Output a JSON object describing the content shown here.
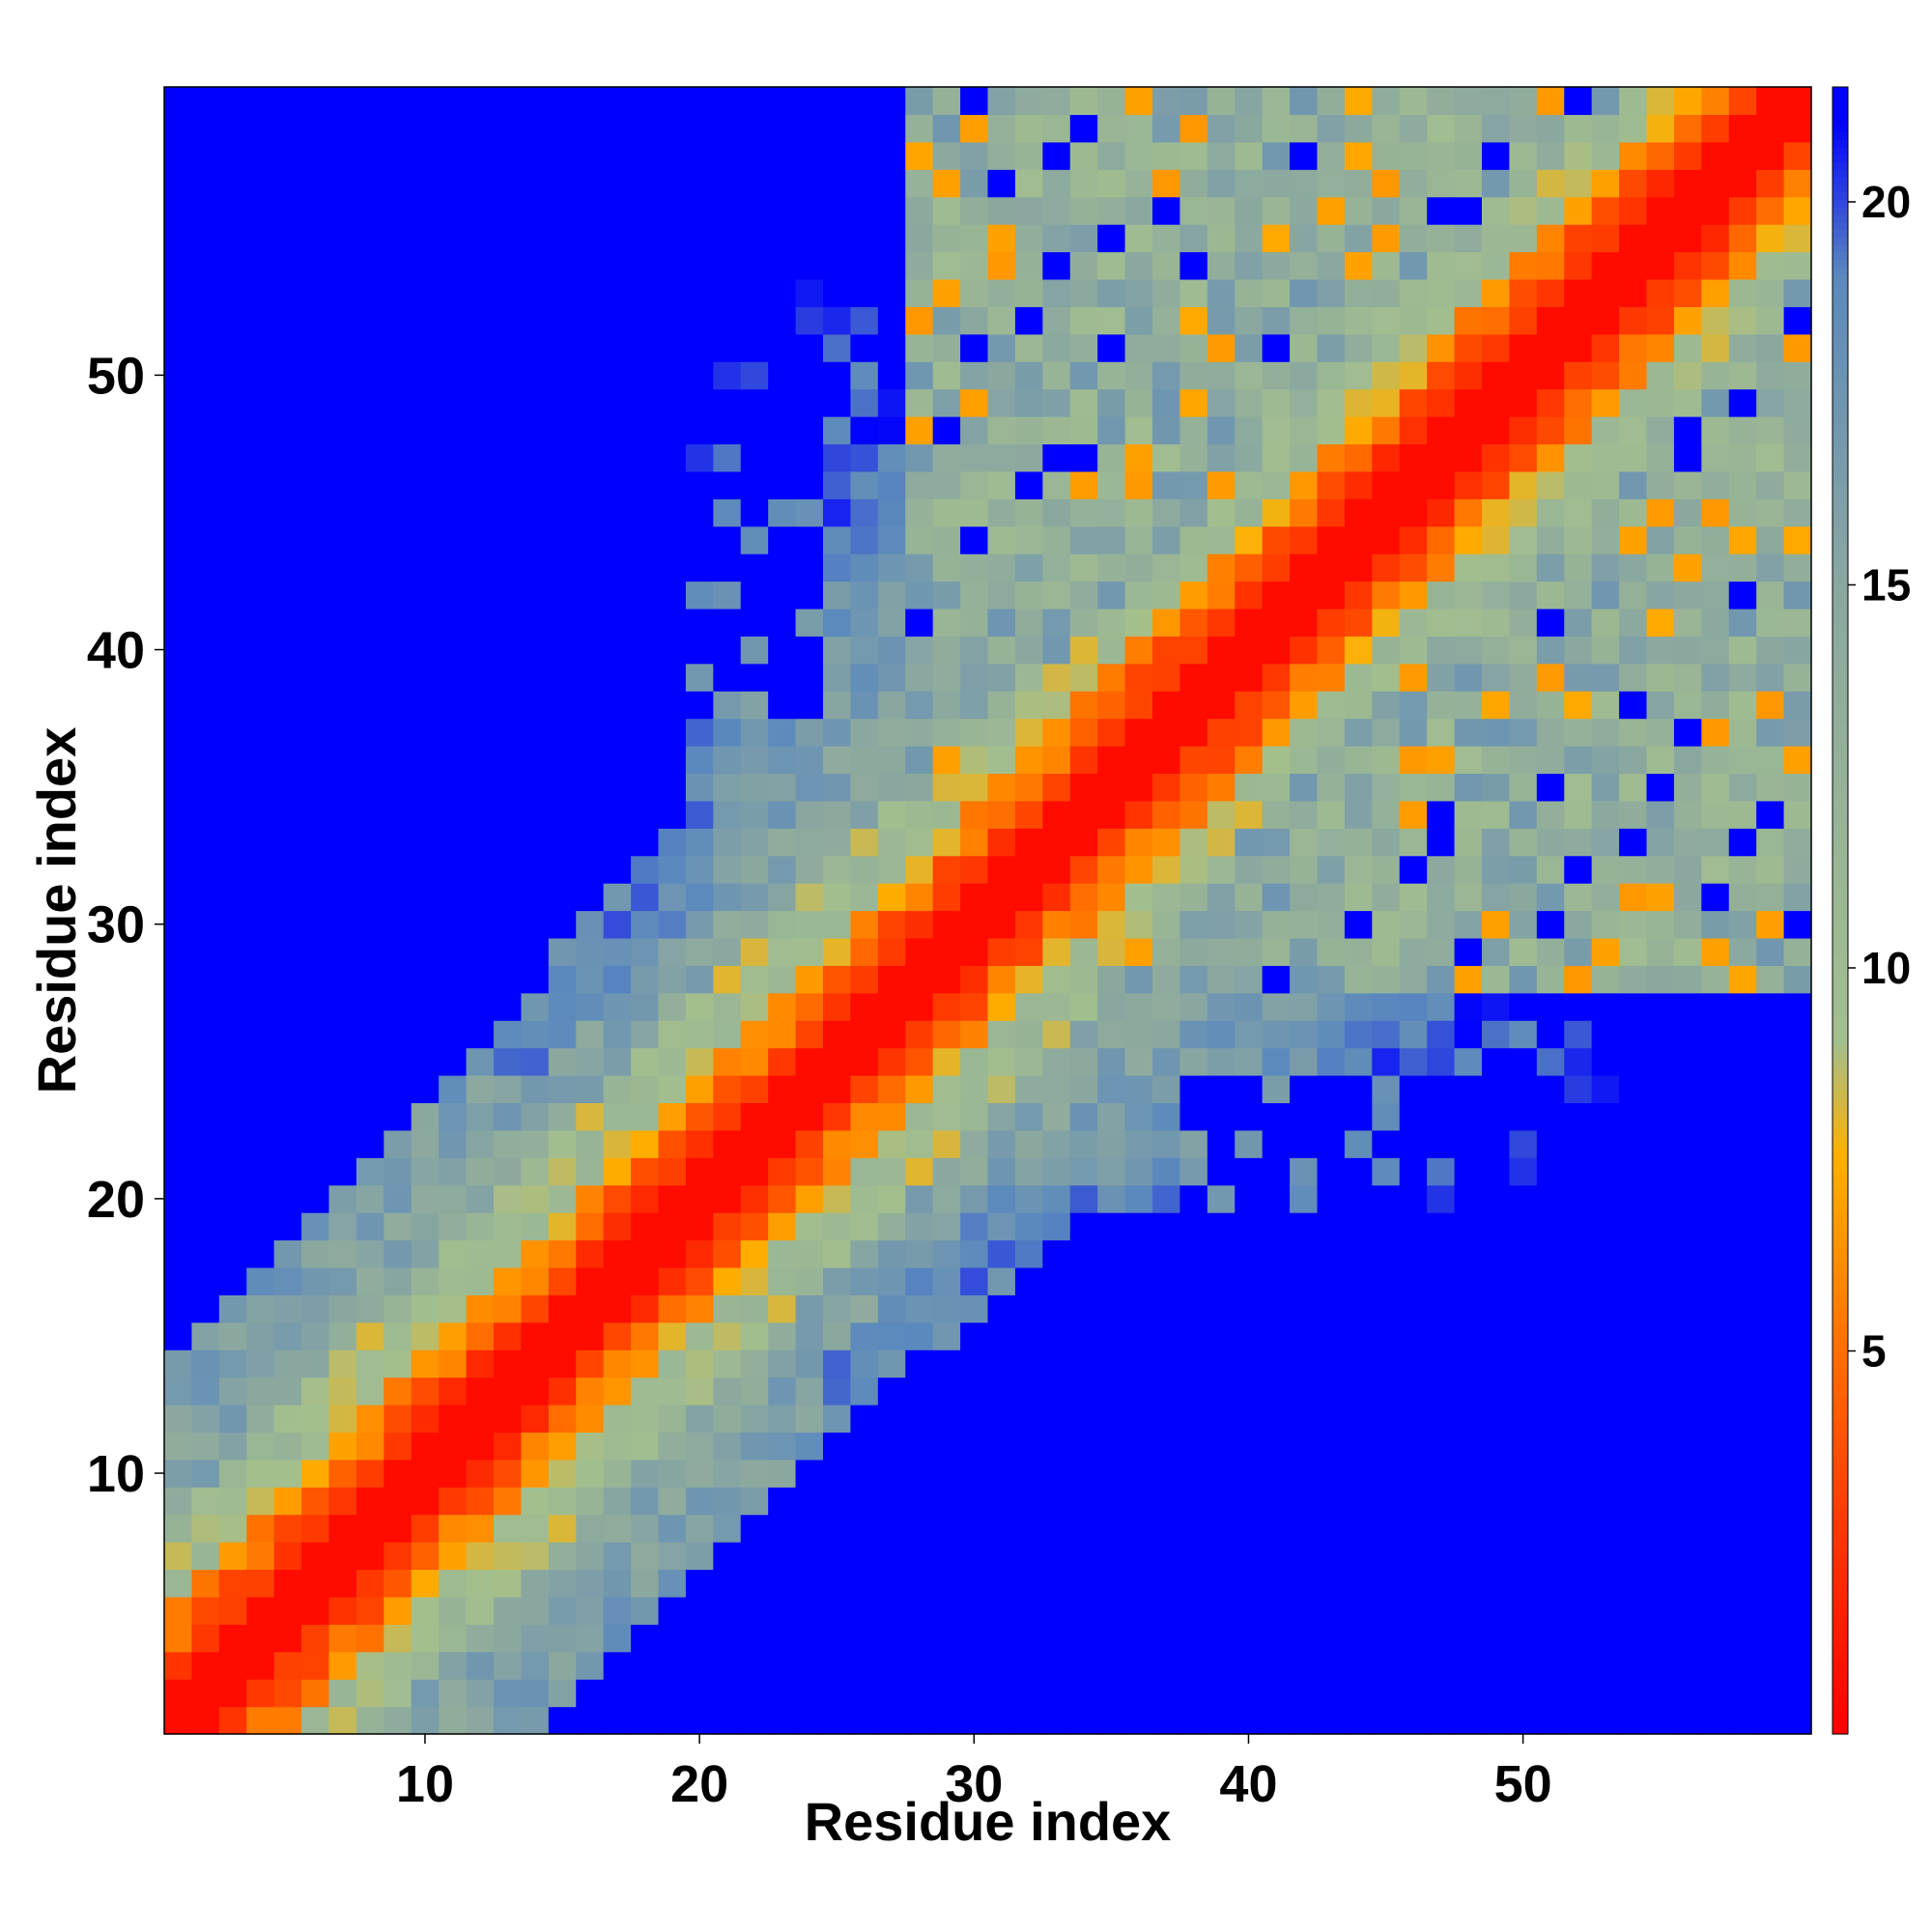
{
  "chart_data": {
    "type": "heatmap",
    "title": "",
    "xlabel": "Residue index",
    "ylabel": "Residue index",
    "x_range": [
      1,
      60
    ],
    "y_range": [
      1,
      60
    ],
    "x_ticks": [
      10,
      20,
      30,
      40,
      50
    ],
    "y_ticks": [
      10,
      20,
      30,
      40,
      50
    ],
    "colorbar": {
      "ticks": [
        5,
        10,
        15,
        20
      ],
      "range": [
        0,
        21.5
      ],
      "stops": [
        {
          "value": 0,
          "color": "#ff0000"
        },
        {
          "value": 3,
          "color": "#ff4000"
        },
        {
          "value": 5,
          "color": "#ff7000"
        },
        {
          "value": 7.5,
          "color": "#ffb000"
        },
        {
          "value": 9,
          "color": "#a3bf8e"
        },
        {
          "value": 15,
          "color": "#8aa7a0"
        },
        {
          "value": 19,
          "color": "#5b89bd"
        },
        {
          "value": 21,
          "color": "#0000ff"
        }
      ]
    },
    "description_of_values": "Symmetric distance map between residue pairs; approximated grid values with red diagonal band (near 0), orange/yellow-green near band, blue-grey farther, saturated blue for large distances.",
    "matrix_rule": {
      "n": 60,
      "saturated_value": 21,
      "saturated_color": "#0000ff"
    }
  }
}
